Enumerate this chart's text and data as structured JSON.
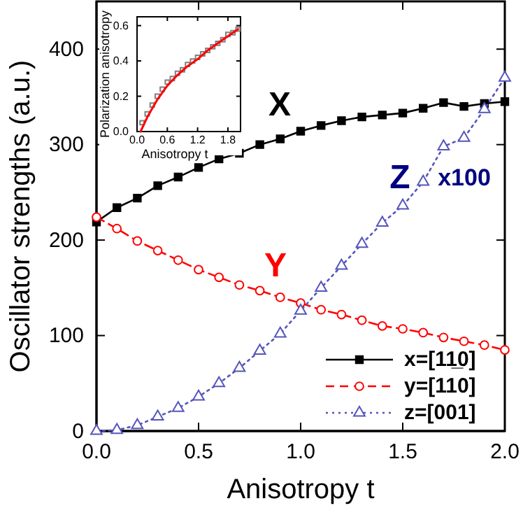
{
  "chart_data": [
    {
      "type": "line",
      "xlabel": "Anisotropy t",
      "ylabel": "Oscillator strengths (a.u.)",
      "x": [
        0,
        0.1,
        0.2,
        0.3,
        0.4,
        0.5,
        0.6,
        0.7,
        0.8,
        0.9,
        1.0,
        1.1,
        1.2,
        1.3,
        1.4,
        1.5,
        1.6,
        1.7,
        1.8,
        1.9,
        2.0
      ],
      "series": [
        {
          "name": "x=[11̲0]",
          "color": "#000000",
          "marker": "square",
          "line_style": "solid",
          "values": [
            219,
            234,
            244,
            257,
            266,
            276,
            285,
            291,
            300,
            306,
            314,
            320,
            325,
            329,
            331,
            333,
            338,
            344,
            340,
            343,
            345
          ]
        },
        {
          "name": "y=[110]",
          "color": "#ff0000",
          "marker": "circle",
          "line_style": "dashed",
          "values": [
            224,
            212,
            199,
            189,
            179,
            169,
            161,
            153,
            147,
            140,
            134,
            127,
            122,
            116,
            110,
            107,
            103,
            98,
            94,
            90,
            85
          ]
        },
        {
          "name": "z=[001]",
          "color": "#5555bb",
          "marker": "triangle",
          "line_style": "dotted",
          "values": [
            0,
            1,
            6,
            15,
            24,
            36,
            50,
            66,
            84,
            102,
            126,
            150,
            173,
            196,
            218,
            236,
            261,
            298,
            307,
            337,
            370
          ]
        }
      ],
      "annotations": [
        "X",
        "Y",
        "Z",
        "x100"
      ],
      "xlim": [
        0,
        2
      ],
      "xticks": [
        {
          "value": 0,
          "label": "0.0"
        },
        {
          "value": 0.5,
          "label": "0.5"
        },
        {
          "value": 1,
          "label": "1.0"
        },
        {
          "value": 1.5,
          "label": "1.5"
        },
        {
          "value": 2,
          "label": "2.0"
        }
      ],
      "ylim": [
        0,
        450
      ],
      "yticks": [
        0,
        100,
        200,
        300,
        400
      ],
      "legend": "bottom right",
      "grid": false
    },
    {
      "type": "scatter",
      "xlabel": "Anisotropy t",
      "ylabel": "Polarization anisotropy",
      "series": [
        {
          "color": "#808080",
          "marker": "square",
          "x": [
            0.1,
            0.2,
            0.3,
            0.4,
            0.5,
            0.6,
            0.7,
            0.8,
            0.9,
            1.0,
            1.1,
            1.2,
            1.3,
            1.4,
            1.5,
            1.6,
            1.7,
            1.8,
            1.9,
            2.0
          ],
          "values": [
            0.05,
            0.1,
            0.15,
            0.2,
            0.24,
            0.28,
            0.3,
            0.33,
            0.35,
            0.38,
            0.4,
            0.42,
            0.44,
            0.46,
            0.48,
            0.5,
            0.52,
            0.55,
            0.56,
            0.58
          ]
        },
        {
          "type": "line",
          "color": "#ff0000",
          "marker": "none",
          "x": [
            0.07,
            0.2,
            0.4,
            0.6,
            0.8,
            1.0,
            1.2,
            1.4,
            1.6,
            1.8,
            2.0
          ],
          "values": [
            0,
            0.08,
            0.18,
            0.26,
            0.32,
            0.37,
            0.41,
            0.46,
            0.5,
            0.54,
            0.58
          ]
        }
      ],
      "xlim": [
        0,
        2.05
      ],
      "xticks": [
        {
          "value": 0,
          "label": "0.0"
        },
        {
          "value": 0.6,
          "label": "0.6"
        },
        {
          "value": 1.2,
          "label": "1.2"
        },
        {
          "value": 1.8,
          "label": "1.8"
        }
      ],
      "ylim": [
        0,
        0.65
      ],
      "yticks": [
        {
          "value": 0,
          "label": "0.0"
        },
        {
          "value": 0.2,
          "label": "0.2"
        },
        {
          "value": 0.4,
          "label": "0.4"
        },
        {
          "value": 0.6,
          "label": "0.6"
        }
      ],
      "grid": false
    }
  ]
}
